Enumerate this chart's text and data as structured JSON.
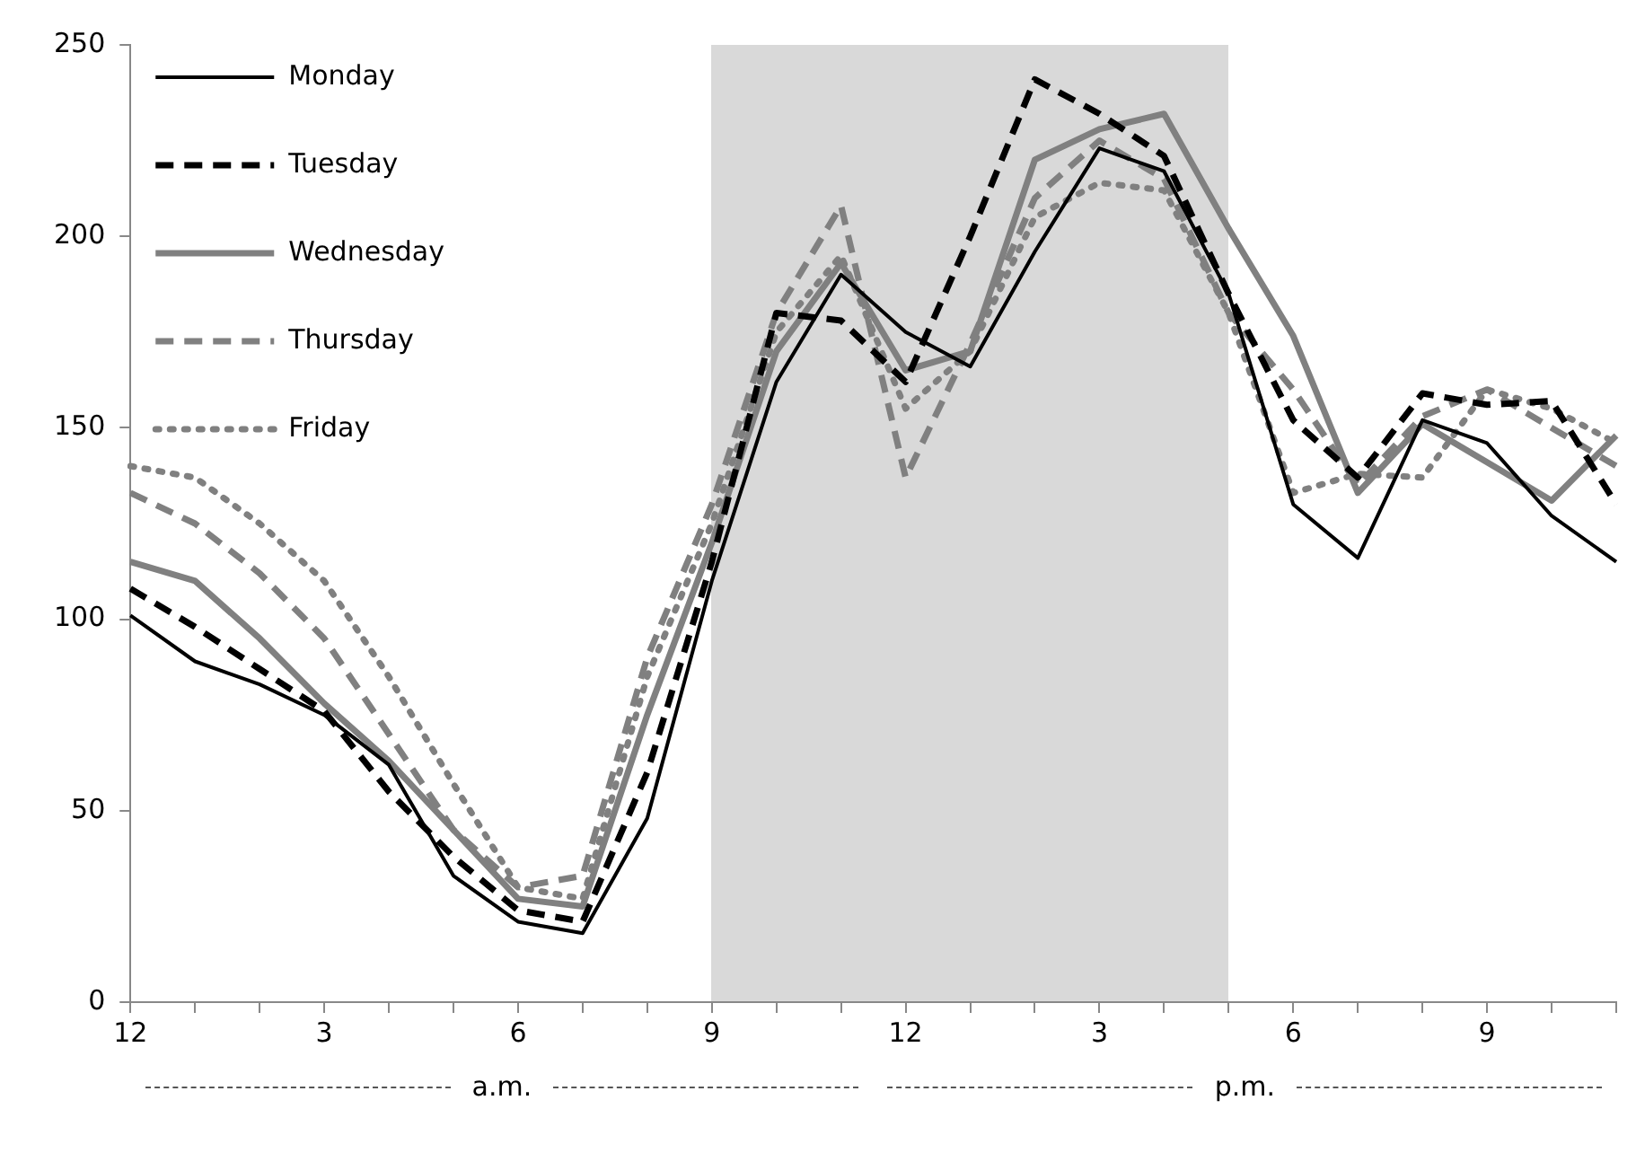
{
  "chart_data": {
    "type": "line",
    "categories": [
      "12",
      null,
      null,
      "3",
      null,
      null,
      "6",
      null,
      null,
      "9",
      null,
      null,
      "12",
      null,
      null,
      "3",
      null,
      null,
      "6",
      null,
      null,
      "9",
      null,
      null
    ],
    "ylim": [
      0,
      250
    ],
    "yticks": [
      0,
      50,
      100,
      150,
      200,
      250
    ],
    "grid": false,
    "legend": "top left",
    "marker": "none",
    "annotations": [
      "a.m.",
      "p.m."
    ],
    "series": [
      {
        "name": "Monday",
        "color": "#000000",
        "line_style": "solid",
        "values": [
          101,
          89,
          83,
          75,
          62,
          33,
          21,
          18,
          48,
          110,
          162,
          190,
          175,
          166,
          196,
          223,
          217,
          185,
          130,
          116,
          152,
          146,
          127,
          115
        ]
      },
      {
        "name": "Tuesday",
        "color": "#000000",
        "line_style": "dashed",
        "values": [
          108,
          98,
          87,
          76,
          55,
          38,
          24,
          21,
          60,
          115,
          180,
          178,
          162,
          200,
          241,
          232,
          221,
          185,
          152,
          137,
          159,
          156,
          157,
          130
        ]
      },
      {
        "name": "Wednesday",
        "color": "#808080",
        "line_style": "solid",
        "values": [
          115,
          110,
          95,
          78,
          63,
          45,
          27,
          25,
          75,
          120,
          170,
          193,
          165,
          170,
          220,
          228,
          232,
          202,
          174,
          133,
          151,
          141,
          131,
          148
        ]
      },
      {
        "name": "Thursday",
        "color": "#808080",
        "line_style": "dashed",
        "values": [
          133,
          125,
          112,
          95,
          70,
          45,
          30,
          33,
          90,
          130,
          180,
          208,
          137,
          172,
          210,
          225,
          215,
          180,
          160,
          135,
          153,
          160,
          150,
          140
        ]
      },
      {
        "name": "Friday",
        "color": "#808080",
        "line_style": "dotted",
        "values": [
          140,
          137,
          125,
          110,
          85,
          57,
          30,
          27,
          85,
          125,
          175,
          195,
          155,
          170,
          205,
          214,
          212,
          180,
          133,
          138,
          137,
          160,
          155,
          146
        ]
      }
    ]
  }
}
